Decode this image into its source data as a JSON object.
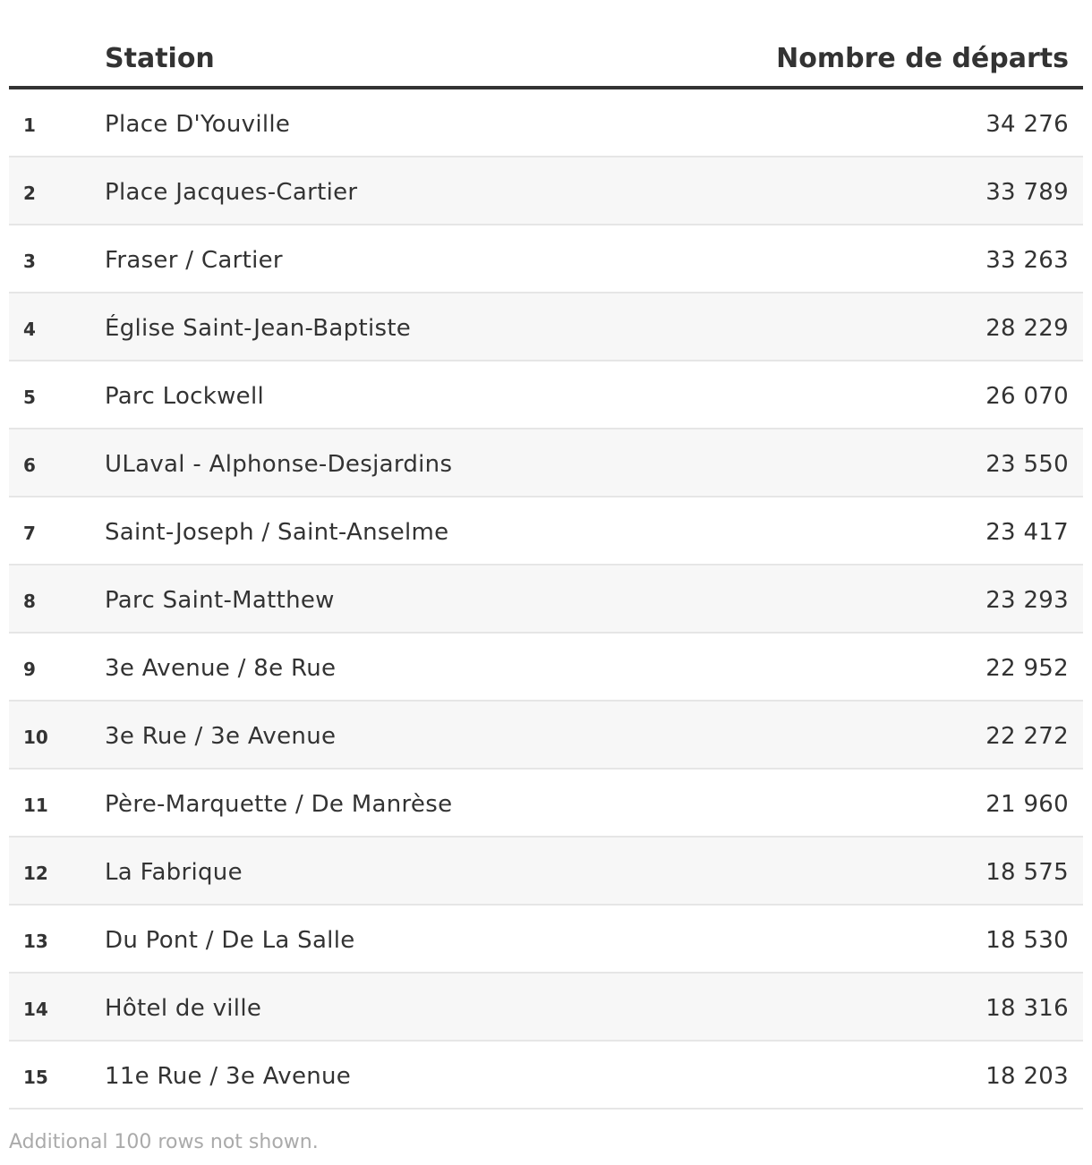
{
  "chart_data": {
    "type": "table",
    "columns": [
      "",
      "Station",
      "Nombre de départs"
    ],
    "rows": [
      {
        "rank": "1",
        "station": "Place D'Youville",
        "departs": "34 276"
      },
      {
        "rank": "2",
        "station": "Place Jacques-Cartier",
        "departs": "33 789"
      },
      {
        "rank": "3",
        "station": "Fraser / Cartier",
        "departs": "33 263"
      },
      {
        "rank": "4",
        "station": "Église Saint-Jean-Baptiste",
        "departs": "28 229"
      },
      {
        "rank": "5",
        "station": "Parc Lockwell",
        "departs": "26 070"
      },
      {
        "rank": "6",
        "station": "ULaval - Alphonse-Desjardins",
        "departs": "23 550"
      },
      {
        "rank": "7",
        "station": "Saint-Joseph / Saint-Anselme",
        "departs": "23 417"
      },
      {
        "rank": "8",
        "station": "Parc Saint-Matthew",
        "departs": "23 293"
      },
      {
        "rank": "9",
        "station": "3e Avenue / 8e Rue",
        "departs": "22 952"
      },
      {
        "rank": "10",
        "station": "3e Rue / 3e Avenue",
        "departs": "22 272"
      },
      {
        "rank": "11",
        "station": "Père-Marquette / De Manrèse",
        "departs": "21 960"
      },
      {
        "rank": "12",
        "station": "La Fabrique",
        "departs": "18 575"
      },
      {
        "rank": "13",
        "station": "Du Pont / De La Salle",
        "departs": "18 530"
      },
      {
        "rank": "14",
        "station": "Hôtel de ville",
        "departs": "18 316"
      },
      {
        "rank": "15",
        "station": "11e Rue / 3e Avenue",
        "departs": "18 203"
      }
    ],
    "footer": "Additional 100 rows not shown."
  },
  "colors": {
    "text": "#333333",
    "header_rule": "#333333",
    "row_rule": "#e6e6e6",
    "row_alt": "#f7f7f7",
    "footer_text": "#aaaaaa"
  }
}
